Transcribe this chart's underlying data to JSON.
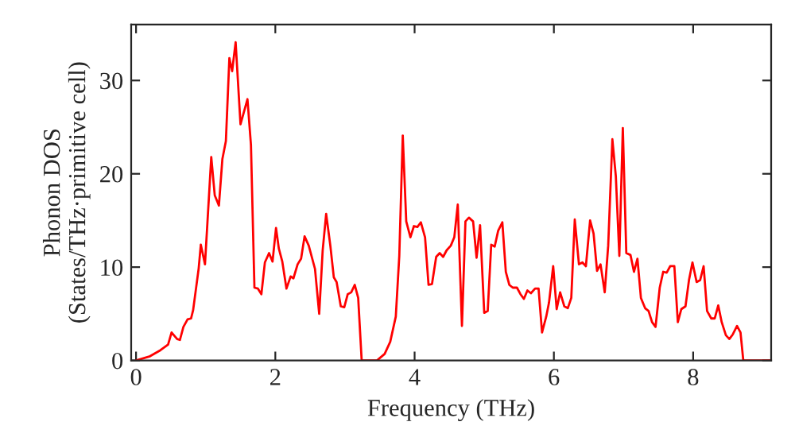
{
  "chart_data": {
    "type": "line",
    "xlabel": "Frequency (THz)",
    "ylabel": "Phonon DOS\n(States/THz·primitive cell)",
    "xlim": [
      -0.07,
      9.12
    ],
    "ylim": [
      0,
      36
    ],
    "xticks": [
      0,
      2,
      4,
      6,
      8
    ],
    "yticks": [
      0,
      10,
      20,
      30
    ],
    "grid": false,
    "legend": false,
    "marker": "none",
    "line_style": "solid",
    "series": [
      {
        "color": "#ff0000",
        "x": [
          0,
          0.2,
          0.35,
          0.46,
          0.51,
          0.59,
          0.63,
          0.68,
          0.74,
          0.79,
          0.82,
          0.9,
          0.93,
          0.99,
          1.08,
          1.13,
          1.19,
          1.24,
          1.29,
          1.34,
          1.38,
          1.43,
          1.5,
          1.6,
          1.65,
          1.7,
          1.75,
          1.8,
          1.85,
          1.91,
          1.96,
          2.01,
          2.05,
          2.1,
          2.16,
          2.22,
          2.26,
          2.32,
          2.37,
          2.42,
          2.48,
          2.57,
          2.63,
          2.68,
          2.73,
          2.79,
          2.84,
          2.88,
          2.94,
          2.99,
          3.04,
          3.09,
          3.14,
          3.19,
          3.24,
          3.46,
          3.57,
          3.65,
          3.73,
          3.78,
          3.83,
          3.88,
          3.94,
          3.99,
          4.04,
          4.09,
          4.15,
          4.2,
          4.25,
          4.31,
          4.36,
          4.41,
          4.46,
          4.52,
          4.57,
          4.62,
          4.68,
          4.73,
          4.78,
          4.84,
          4.89,
          4.94,
          5.0,
          5.05,
          5.1,
          5.15,
          5.2,
          5.26,
          5.31,
          5.36,
          5.41,
          5.47,
          5.52,
          5.57,
          5.62,
          5.67,
          5.73,
          5.78,
          5.83,
          5.89,
          5.93,
          5.99,
          6.04,
          6.09,
          6.15,
          6.2,
          6.25,
          6.3,
          6.36,
          6.41,
          6.46,
          6.52,
          6.57,
          6.62,
          6.67,
          6.73,
          6.78,
          6.84,
          6.89,
          6.94,
          6.99,
          7.04,
          7.1,
          7.15,
          7.2,
          7.25,
          7.31,
          7.36,
          7.41,
          7.46,
          7.52,
          7.57,
          7.62,
          7.67,
          7.73,
          7.78,
          7.83,
          7.89,
          7.94,
          7.99,
          8.05,
          8.1,
          8.15,
          8.2,
          8.26,
          8.31,
          8.36,
          8.41,
          8.47,
          8.52,
          8.57,
          8.63,
          8.68,
          8.72,
          9.12
        ],
        "values": [
          0,
          0.45,
          1.1,
          1.7,
          3.0,
          2.3,
          2.2,
          3.6,
          4.4,
          4.5,
          5.4,
          9.9,
          12.4,
          10.3,
          21.8,
          17.7,
          16.6,
          21.6,
          23.5,
          32.4,
          31.0,
          34.1,
          25.3,
          28.0,
          23.1,
          7.8,
          7.7,
          7.1,
          10.5,
          11.5,
          10.6,
          14.2,
          12.0,
          10.6,
          7.7,
          9.0,
          8.8,
          10.3,
          10.9,
          13.3,
          12.3,
          9.8,
          5.0,
          11.8,
          15.7,
          12.3,
          8.9,
          8.4,
          5.8,
          5.7,
          7.1,
          7.3,
          8.1,
          6.7,
          0,
          0,
          0.7,
          2.0,
          4.7,
          11.2,
          24.1,
          14.9,
          13.2,
          14.4,
          14.3,
          14.8,
          13.2,
          8.1,
          8.2,
          11.1,
          11.5,
          11.1,
          11.8,
          12.3,
          13.2,
          16.7,
          3.7,
          14.9,
          15.3,
          14.9,
          11.0,
          14.5,
          5.1,
          5.3,
          12.4,
          12.2,
          13.9,
          14.8,
          9.5,
          8.1,
          7.8,
          7.8,
          7.1,
          6.6,
          7.5,
          7.2,
          7.7,
          7.7,
          3.0,
          4.7,
          6.2,
          10.1,
          5.5,
          7.3,
          5.8,
          5.6,
          6.7,
          15.1,
          10.3,
          10.5,
          10.1,
          15.0,
          13.6,
          9.6,
          10.3,
          7.3,
          12.3,
          23.7,
          19.7,
          11.2,
          24.9,
          11.5,
          11.3,
          9.5,
          10.9,
          6.7,
          5.6,
          5.3,
          4.1,
          3.6,
          7.8,
          9.5,
          9.4,
          10.1,
          10.1,
          4.1,
          5.5,
          5.8,
          8.6,
          10.5,
          8.4,
          8.6,
          10.1,
          5.3,
          4.5,
          4.5,
          5.9,
          4.1,
          2.7,
          2.3,
          2.8,
          3.7,
          3.0,
          0,
          0
        ]
      }
    ]
  }
}
